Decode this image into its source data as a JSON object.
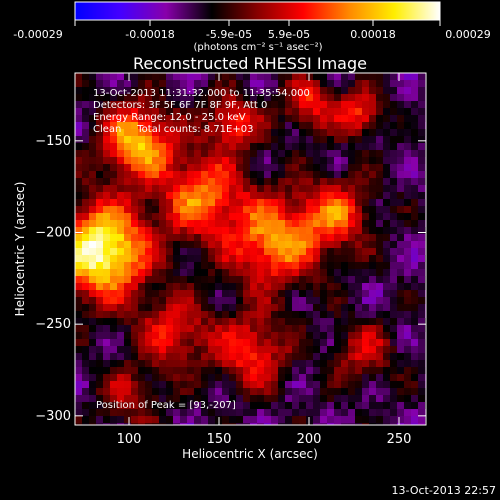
{
  "colorbar": {
    "ticks": [
      "-0.00029",
      "-0.00018",
      "-5.9e-05",
      "5.9e-05",
      "0.00018",
      "0.00029"
    ],
    "range": [
      -0.00029,
      0.00029
    ],
    "units": "(photons cm⁻² s⁻¹ asec⁻²)",
    "colormap": [
      "#0000ff",
      "#4400ff",
      "#8800aa",
      "#000000",
      "#880000",
      "#ff0000",
      "#ff8800",
      "#ffee00",
      "#ffffff"
    ]
  },
  "chart_data": {
    "type": "heatmap",
    "title": "Reconstructed RHESSI Image",
    "xlabel": "Heliocentric X (arcsec)",
    "ylabel": "Heliocentric Y (arcsec)",
    "xlim": [
      70,
      265
    ],
    "ylim": [
      -305,
      -113
    ],
    "x_ticks": [
      100,
      150,
      200,
      250
    ],
    "y_ticks": [
      -300,
      -250,
      -200,
      -150
    ],
    "annotations": [
      "13-Oct-2013 11:31:32.000 to 11:35:54.000",
      "Detectors: 3F 5F 6F 7F 8F 9F, Att 0",
      "Energy Range: 12.0 - 25.0 keV",
      "Clean     Total counts: 8.71E+03"
    ],
    "peak_label": "Position of Peak = [93,-207]",
    "peak": [
      93,
      -207
    ],
    "sources": [
      {
        "x": 85,
        "y": -210,
        "amp": 1.0,
        "r": 18
      },
      {
        "x": 105,
        "y": -150,
        "amp": 0.75,
        "r": 14
      },
      {
        "x": 140,
        "y": -180,
        "amp": 0.6,
        "r": 16
      },
      {
        "x": 180,
        "y": -205,
        "amp": 0.65,
        "r": 18
      },
      {
        "x": 215,
        "y": -190,
        "amp": 0.5,
        "r": 14
      },
      {
        "x": 158,
        "y": -140,
        "amp": 0.55,
        "r": 10
      },
      {
        "x": 200,
        "y": -130,
        "amp": 0.45,
        "r": 10
      },
      {
        "x": 228,
        "y": -135,
        "amp": 0.5,
        "r": 9
      },
      {
        "x": 125,
        "y": -255,
        "amp": 0.45,
        "r": 14
      },
      {
        "x": 168,
        "y": -265,
        "amp": 0.5,
        "r": 14
      },
      {
        "x": 230,
        "y": -265,
        "amp": 0.35,
        "r": 12
      },
      {
        "x": 100,
        "y": -290,
        "amp": 0.3,
        "r": 12
      }
    ]
  },
  "footer": {
    "timestamp": "13-Oct-2013 22:57"
  }
}
